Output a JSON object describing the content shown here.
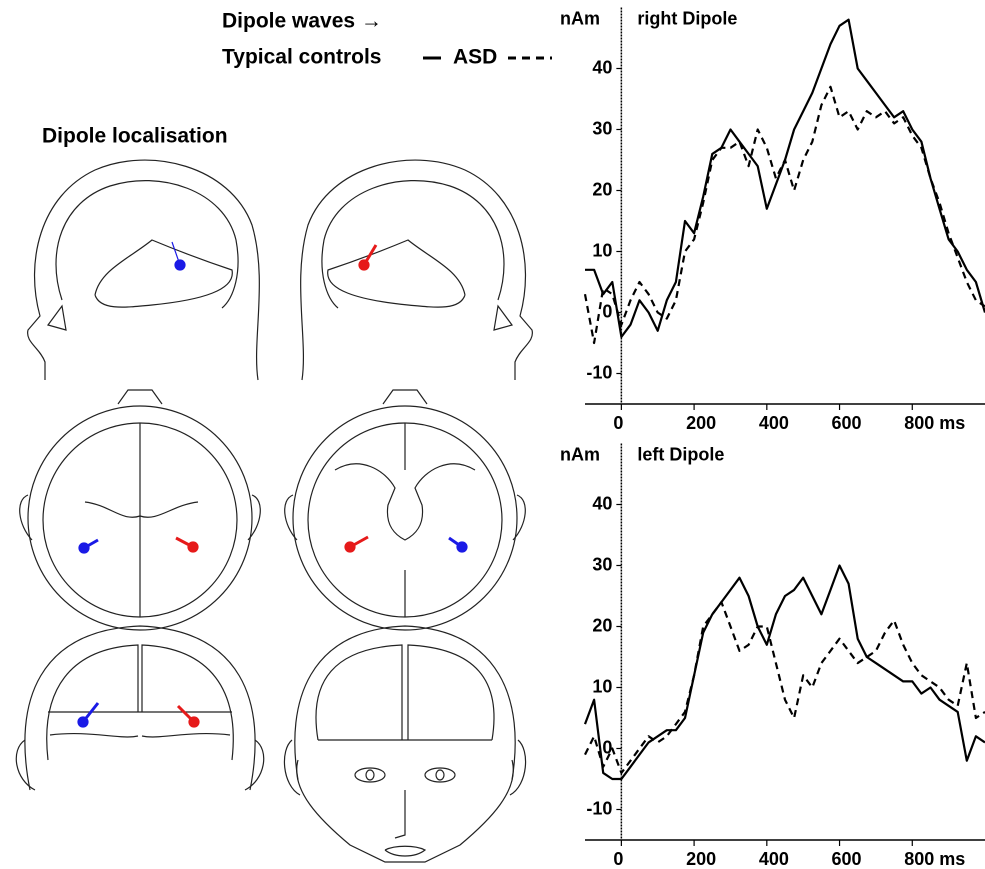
{
  "header": {
    "title": "Dipole waves →",
    "section": "Dipole localisation"
  },
  "chart_data": [
    {
      "type": "line",
      "title": "right Dipole",
      "y_label": "nAm",
      "x": [
        -100,
        -75,
        -50,
        -25,
        0,
        25,
        50,
        75,
        100,
        125,
        150,
        175,
        200,
        225,
        250,
        275,
        300,
        325,
        350,
        375,
        400,
        425,
        450,
        475,
        500,
        525,
        550,
        575,
        600,
        625,
        650,
        675,
        700,
        725,
        750,
        775,
        800,
        825,
        850,
        875,
        900,
        925,
        950,
        975,
        1000
      ],
      "series": [
        {
          "name": "Typical controls",
          "color": "#000000",
          "line_style": "solid",
          "values": [
            7,
            7,
            3,
            5,
            -4,
            -2,
            2,
            0,
            -3,
            2,
            5,
            15,
            13,
            19,
            26,
            27,
            30,
            28,
            26,
            24,
            17,
            21,
            25,
            30,
            33,
            36,
            40,
            44,
            47,
            48,
            40,
            38,
            36,
            34,
            32,
            33,
            30,
            28,
            22,
            17,
            12,
            10,
            7,
            5,
            0
          ]
        },
        {
          "name": "ASD",
          "color": "#000000",
          "line_style": "dashed",
          "values": [
            3,
            -5,
            4,
            3,
            -2,
            2,
            5,
            3,
            0,
            -1,
            2,
            10,
            12,
            18,
            25,
            27,
            27,
            28,
            24,
            30,
            27,
            22,
            25,
            20,
            25,
            28,
            34,
            37,
            32,
            33,
            30,
            33,
            32,
            33,
            31,
            32,
            29,
            27,
            22,
            18,
            13,
            9,
            5,
            2,
            1
          ]
        }
      ],
      "xlim": [
        -100,
        1000
      ],
      "xticks": [
        0,
        200,
        400,
        600,
        {
          "value": 800,
          "label": "800 ms"
        }
      ],
      "ylim": [
        -15,
        50
      ],
      "yticks": [
        -10,
        0,
        10,
        20,
        30,
        40
      ]
    },
    {
      "type": "line",
      "title": "left Dipole",
      "y_label": "nAm",
      "x": [
        -100,
        -75,
        -50,
        -25,
        0,
        25,
        50,
        75,
        100,
        125,
        150,
        175,
        200,
        225,
        250,
        275,
        300,
        325,
        350,
        375,
        400,
        425,
        450,
        475,
        500,
        525,
        550,
        575,
        600,
        625,
        650,
        675,
        700,
        725,
        750,
        775,
        800,
        825,
        850,
        875,
        900,
        925,
        950,
        975,
        1000
      ],
      "series": [
        {
          "name": "Typical controls",
          "color": "#000000",
          "line_style": "solid",
          "values": [
            4,
            8,
            -4,
            -5,
            -5,
            -3,
            -1,
            1,
            2,
            3,
            3,
            5,
            12,
            19,
            22,
            24,
            26,
            28,
            25,
            20,
            17,
            22,
            25,
            26,
            28,
            25,
            22,
            26,
            30,
            27,
            18,
            15,
            14,
            13,
            12,
            11,
            11,
            9,
            10,
            8,
            7,
            6,
            -2,
            2,
            1
          ]
        },
        {
          "name": "ASD",
          "color": "#000000",
          "line_style": "dashed",
          "values": [
            -1,
            2,
            -3,
            0,
            -4,
            -2,
            0,
            2,
            1,
            2,
            4,
            6,
            12,
            20,
            22,
            24,
            20,
            16,
            17,
            20,
            20,
            14,
            8,
            5,
            12,
            10,
            14,
            16,
            18,
            16,
            14,
            15,
            16,
            19,
            21,
            17,
            14,
            12,
            11,
            10,
            8,
            7,
            14,
            5,
            6
          ]
        }
      ],
      "xlim": [
        -100,
        1000
      ],
      "xticks": [
        0,
        200,
        400,
        600,
        {
          "value": 800,
          "label": "800 ms"
        }
      ],
      "ylim": [
        -15,
        50
      ],
      "yticks": [
        -10,
        0,
        10,
        20,
        30,
        40
      ]
    }
  ]
}
